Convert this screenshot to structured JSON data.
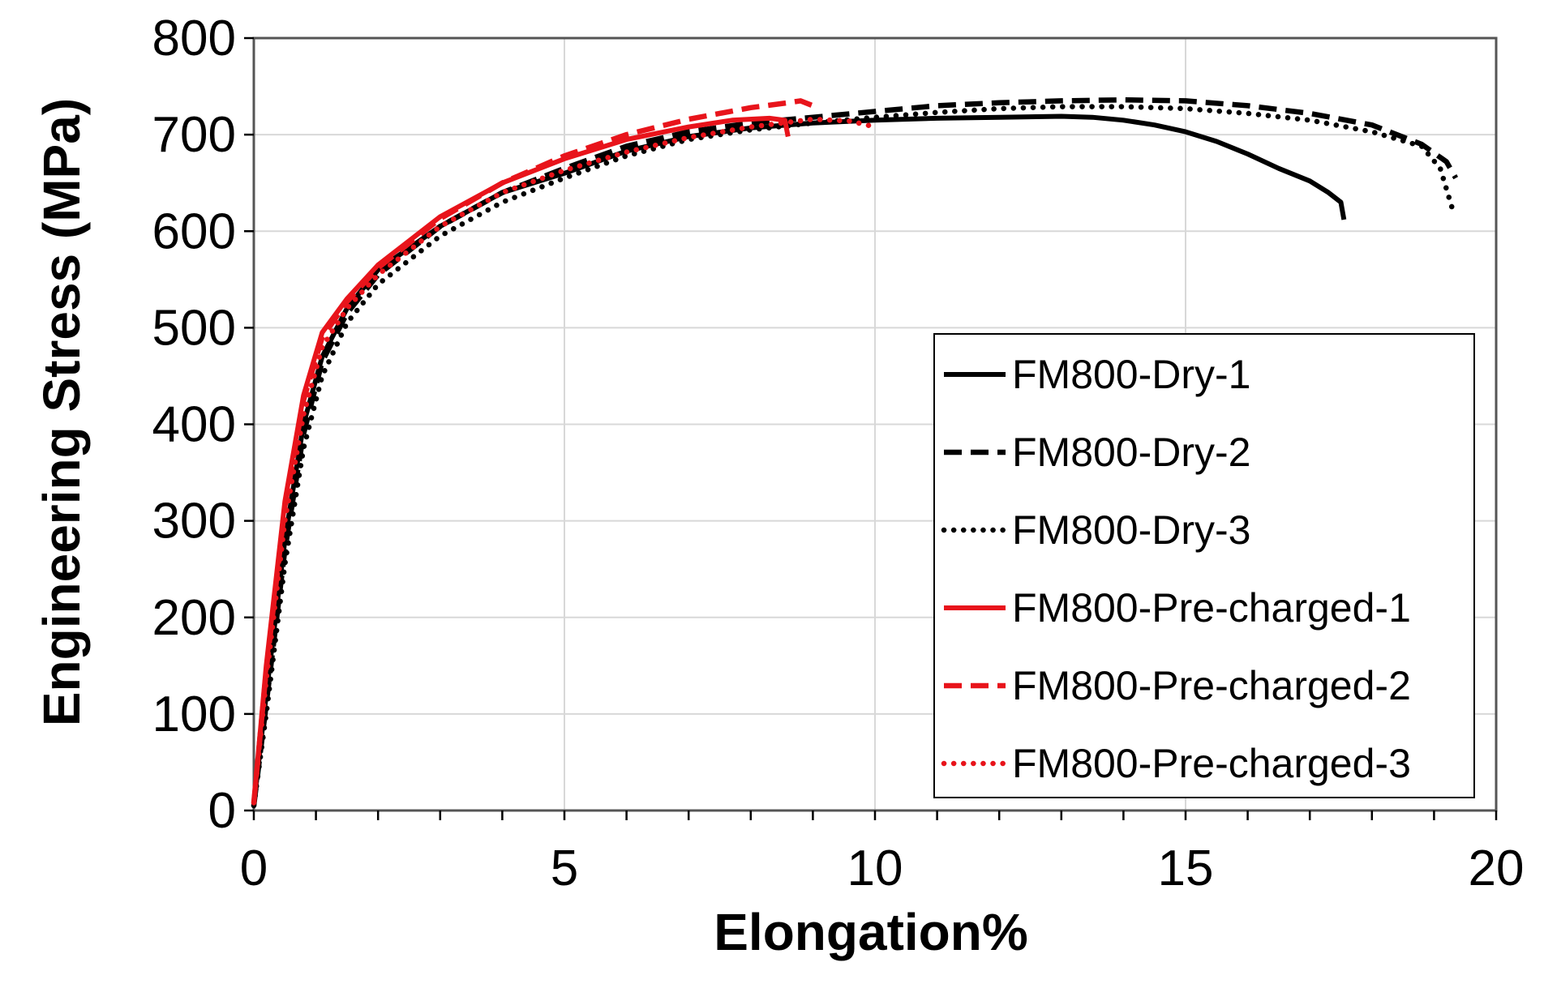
{
  "chart_data": {
    "type": "line",
    "title": "",
    "xlabel": "Elongation%",
    "ylabel": "Engineering Stress (MPa)",
    "xlim": [
      0,
      20
    ],
    "ylim": [
      0,
      800
    ],
    "xticks": [
      0,
      5,
      10,
      15,
      20
    ],
    "yticks": [
      0,
      100,
      200,
      300,
      400,
      500,
      600,
      700,
      800
    ],
    "x_minor_step": 1,
    "grid": true,
    "legend_position": "bottom-right",
    "series": [
      {
        "name": "FM800-Dry-1",
        "color": "#000000",
        "style": "solid",
        "points": [
          [
            0,
            5
          ],
          [
            0.2,
            120
          ],
          [
            0.5,
            280
          ],
          [
            0.8,
            400
          ],
          [
            1.1,
            470
          ],
          [
            1.5,
            520
          ],
          [
            2,
            560
          ],
          [
            3,
            605
          ],
          [
            4,
            640
          ],
          [
            5,
            660
          ],
          [
            6,
            683
          ],
          [
            7,
            698
          ],
          [
            8,
            707
          ],
          [
            9,
            712
          ],
          [
            10,
            715
          ],
          [
            11,
            717
          ],
          [
            12,
            718
          ],
          [
            13,
            719
          ],
          [
            13.5,
            718
          ],
          [
            14,
            715
          ],
          [
            14.5,
            710
          ],
          [
            15,
            703
          ],
          [
            15.5,
            693
          ],
          [
            16,
            680
          ],
          [
            16.5,
            665
          ],
          [
            17,
            652
          ],
          [
            17.3,
            640
          ],
          [
            17.5,
            630
          ],
          [
            17.55,
            612
          ]
        ]
      },
      {
        "name": "FM800-Dry-2",
        "color": "#000000",
        "style": "dashed",
        "points": [
          [
            0,
            5
          ],
          [
            0.2,
            110
          ],
          [
            0.5,
            270
          ],
          [
            0.8,
            390
          ],
          [
            1.1,
            465
          ],
          [
            1.5,
            515
          ],
          [
            2,
            555
          ],
          [
            3,
            605
          ],
          [
            4,
            640
          ],
          [
            5,
            665
          ],
          [
            6,
            688
          ],
          [
            7,
            703
          ],
          [
            8,
            712
          ],
          [
            9,
            718
          ],
          [
            10,
            724
          ],
          [
            11,
            730
          ],
          [
            12,
            733
          ],
          [
            13,
            735
          ],
          [
            14,
            736
          ],
          [
            15,
            735
          ],
          [
            16,
            730
          ],
          [
            17,
            722
          ],
          [
            18,
            710
          ],
          [
            18.8,
            690
          ],
          [
            19.2,
            672
          ],
          [
            19.35,
            655
          ]
        ]
      },
      {
        "name": "FM800-Dry-3",
        "color": "#000000",
        "style": "dotted",
        "points": [
          [
            0,
            5
          ],
          [
            0.2,
            100
          ],
          [
            0.5,
            255
          ],
          [
            0.8,
            375
          ],
          [
            1.1,
            450
          ],
          [
            1.5,
            505
          ],
          [
            2,
            545
          ],
          [
            3,
            595
          ],
          [
            4,
            630
          ],
          [
            5,
            655
          ],
          [
            6,
            678
          ],
          [
            7,
            695
          ],
          [
            8,
            705
          ],
          [
            9,
            712
          ],
          [
            10,
            718
          ],
          [
            11,
            723
          ],
          [
            12,
            727
          ],
          [
            13,
            729
          ],
          [
            14,
            729
          ],
          [
            15,
            727
          ],
          [
            16,
            722
          ],
          [
            17,
            715
          ],
          [
            18,
            703
          ],
          [
            18.8,
            688
          ],
          [
            19.1,
            665
          ],
          [
            19.3,
            622
          ]
        ]
      },
      {
        "name": "FM800-Pre-charged-1",
        "color": "#e8141b",
        "style": "solid",
        "points": [
          [
            0,
            8
          ],
          [
            0.2,
            150
          ],
          [
            0.5,
            320
          ],
          [
            0.8,
            430
          ],
          [
            1.1,
            495
          ],
          [
            1.5,
            530
          ],
          [
            2,
            565
          ],
          [
            3,
            615
          ],
          [
            4,
            650
          ],
          [
            5,
            675
          ],
          [
            6,
            695
          ],
          [
            7,
            708
          ],
          [
            7.7,
            715
          ],
          [
            8.3,
            717
          ],
          [
            8.55,
            715
          ],
          [
            8.6,
            698
          ]
        ]
      },
      {
        "name": "FM800-Pre-charged-2",
        "color": "#e8141b",
        "style": "dashed",
        "points": [
          [
            0,
            8
          ],
          [
            0.2,
            145
          ],
          [
            0.5,
            315
          ],
          [
            0.8,
            425
          ],
          [
            1.1,
            490
          ],
          [
            1.5,
            527
          ],
          [
            2,
            562
          ],
          [
            3,
            613
          ],
          [
            4,
            650
          ],
          [
            5,
            678
          ],
          [
            6,
            700
          ],
          [
            7,
            716
          ],
          [
            8,
            728
          ],
          [
            8.6,
            733
          ],
          [
            8.8,
            735
          ],
          [
            9.0,
            730
          ]
        ]
      },
      {
        "name": "FM800-Pre-charged-3",
        "color": "#e8141b",
        "style": "dotted",
        "points": [
          [
            0,
            8
          ],
          [
            0.2,
            135
          ],
          [
            0.5,
            300
          ],
          [
            0.8,
            410
          ],
          [
            1.1,
            480
          ],
          [
            1.5,
            520
          ],
          [
            2,
            555
          ],
          [
            3,
            605
          ],
          [
            4,
            640
          ],
          [
            5,
            663
          ],
          [
            6,
            682
          ],
          [
            7,
            697
          ],
          [
            8,
            708
          ],
          [
            9,
            716
          ],
          [
            9.6,
            714
          ],
          [
            10,
            708
          ]
        ]
      }
    ]
  }
}
